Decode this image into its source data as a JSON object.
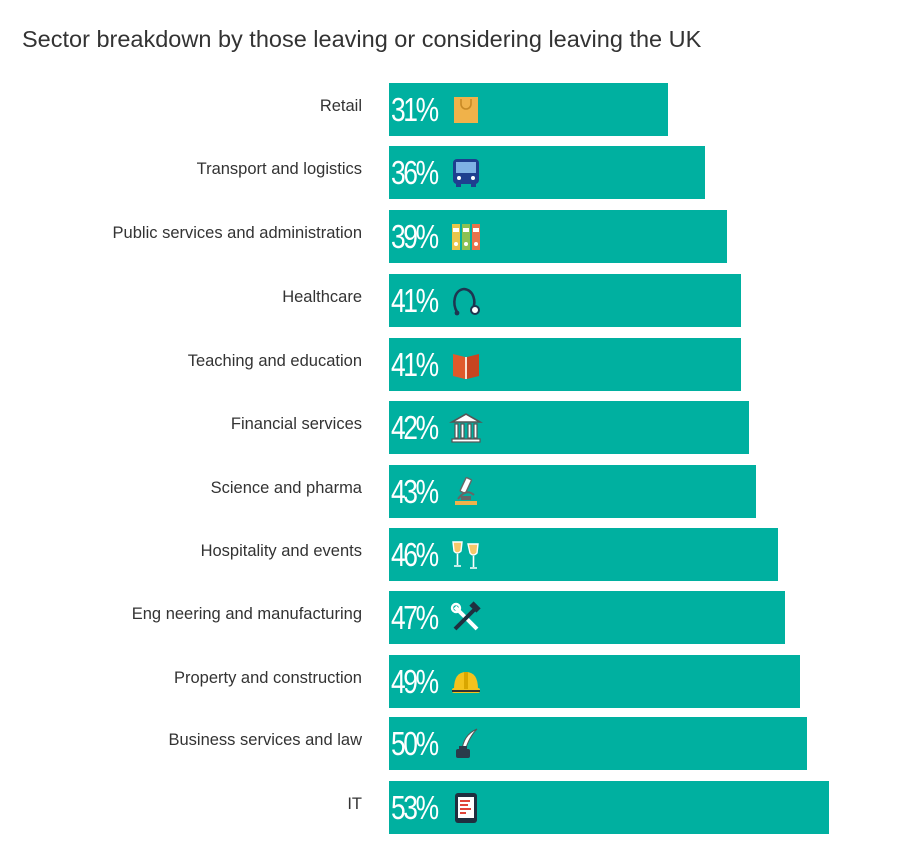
{
  "chart_data": {
    "type": "bar",
    "orientation": "horizontal",
    "title": "Sector breakdown by those leaving or considering leaving the UK",
    "categories": [
      "Retail",
      "Transport and logistics",
      "Public services and administration",
      "Healthcare",
      "Teaching and education",
      "Financial services",
      "Science and pharma",
      "Hospitality and events",
      "Eng neering and manufacturing",
      "Property and construction",
      "Business services and law",
      "IT"
    ],
    "values": [
      31,
      36,
      39,
      41,
      41,
      42,
      43,
      46,
      47,
      49,
      50,
      53
    ],
    "value_labels": [
      "31%",
      "36%",
      "39%",
      "41%",
      "41%",
      "42%",
      "43%",
      "46%",
      "47%",
      "49%",
      "50%",
      "53%"
    ],
    "icons": [
      "shopping-bag-icon",
      "bus-icon",
      "binders-icon",
      "stethoscope-icon",
      "book-icon",
      "bank-icon",
      "microscope-icon",
      "wine-glasses-icon",
      "tools-icon",
      "hard-hat-icon",
      "quill-ink-icon",
      "tablet-icon"
    ],
    "xlim": [
      0,
      100
    ],
    "bar_color": "#00b0a0",
    "grid": false,
    "legend": "none"
  }
}
